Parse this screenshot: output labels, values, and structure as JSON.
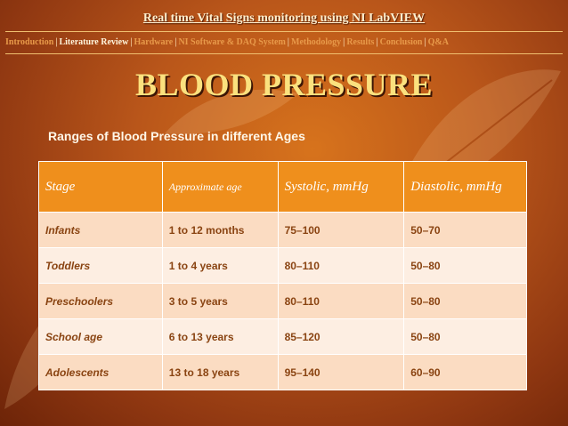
{
  "slide": {
    "title": "Real time Vital Signs monitoring using NI LabVIEW",
    "nav": [
      "Introduction",
      "Literature Review",
      "Hardware",
      "NI Software & DAQ System",
      "Methodology",
      "Results",
      "Conclusion",
      "Q&A"
    ],
    "nav_current": "Literature Review",
    "heading": "BLOOD PRESSURE",
    "subtitle": "Ranges of Blood Pressure in different Ages"
  },
  "table": {
    "headers": [
      "Stage",
      "Approximate age",
      "Systolic, mmHg",
      "Diastolic, mmHg"
    ],
    "rows": [
      {
        "stage": "Infants",
        "age": "1 to 12 months",
        "systolic": "75–100",
        "diastolic": "50–70"
      },
      {
        "stage": "Toddlers",
        "age": "1 to 4 years",
        "systolic": "80–110",
        "diastolic": "50–80"
      },
      {
        "stage": "Preschoolers",
        "age": "3 to 5 years",
        "systolic": "80–110",
        "diastolic": "50–80"
      },
      {
        "stage": "School age",
        "age": "6 to 13 years",
        "systolic": "85–120",
        "diastolic": "50–80"
      },
      {
        "stage": "Adolescents",
        "age": "13 to 18 years",
        "systolic": "95–140",
        "diastolic": "60–90"
      }
    ]
  },
  "colors": {
    "header_fill": "#ef8f1c",
    "heading_text": "#fbe17e",
    "background": "#b9561a"
  }
}
